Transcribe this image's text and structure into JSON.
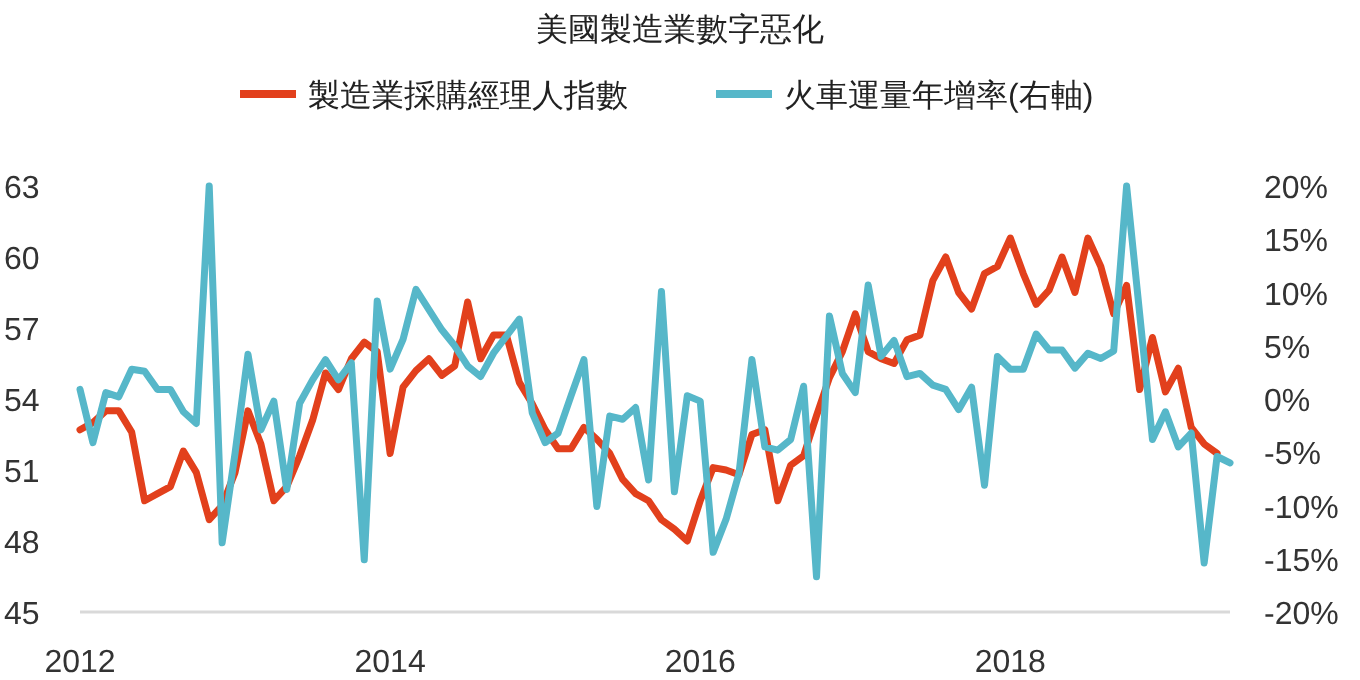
{
  "chart_data": {
    "type": "line",
    "title": "美國製造業數字惡化",
    "legend": "top",
    "grid": false,
    "x": [
      "2012-01",
      "2012-02",
      "2012-03",
      "2012-04",
      "2012-05",
      "2012-06",
      "2012-07",
      "2012-08",
      "2012-09",
      "2012-10",
      "2012-11",
      "2012-12",
      "2013-01",
      "2013-02",
      "2013-03",
      "2013-04",
      "2013-05",
      "2013-06",
      "2013-07",
      "2013-08",
      "2013-09",
      "2013-10",
      "2013-11",
      "2013-12",
      "2014-01",
      "2014-02",
      "2014-03",
      "2014-04",
      "2014-05",
      "2014-06",
      "2014-07",
      "2014-08",
      "2014-09",
      "2014-10",
      "2014-11",
      "2014-12",
      "2015-01",
      "2015-02",
      "2015-03",
      "2015-04",
      "2015-05",
      "2015-06",
      "2015-07",
      "2015-08",
      "2015-09",
      "2015-10",
      "2015-11",
      "2015-12",
      "2016-01",
      "2016-02",
      "2016-03",
      "2016-04",
      "2016-05",
      "2016-06",
      "2016-07",
      "2016-08",
      "2016-09",
      "2016-10",
      "2016-11",
      "2016-12",
      "2017-01",
      "2017-02",
      "2017-03",
      "2017-04",
      "2017-05",
      "2017-06",
      "2017-07",
      "2017-08",
      "2017-09",
      "2017-10",
      "2017-11",
      "2017-12",
      "2018-01",
      "2018-02",
      "2018-03",
      "2018-04",
      "2018-05",
      "2018-06",
      "2018-07",
      "2018-08",
      "2018-09",
      "2018-10",
      "2018-11",
      "2018-12",
      "2019-01",
      "2019-02",
      "2019-03",
      "2019-04",
      "2019-05",
      "2019-06"
    ],
    "xlim": [
      "2012-01",
      "2019-06"
    ],
    "xticks": [
      {
        "value": "2012-01",
        "label": "2012"
      },
      {
        "value": "2014-01",
        "label": "2014"
      },
      {
        "value": "2016-01",
        "label": "2016"
      },
      {
        "value": "2018-01",
        "label": "2018"
      }
    ],
    "ylim": [
      45,
      63
    ],
    "yticks": [
      45,
      48,
      51,
      54,
      57,
      60,
      63
    ],
    "y2lim": [
      -20,
      20
    ],
    "y2ticks": [
      {
        "value": -20,
        "label": "-20%"
      },
      {
        "value": -15,
        "label": "-15%"
      },
      {
        "value": -10,
        "label": "-10%"
      },
      {
        "value": -5,
        "label": "-5%"
      },
      {
        "value": 0,
        "label": "0%"
      },
      {
        "value": 5,
        "label": "5%"
      },
      {
        "value": 10,
        "label": "10%"
      },
      {
        "value": 15,
        "label": "15%"
      },
      {
        "value": 20,
        "label": "20%"
      }
    ],
    "series": [
      {
        "name": "製造業採購經理人指數",
        "color": "#e2401c",
        "values": [
          52.7,
          53.0,
          53.5,
          53.5,
          52.6,
          49.7,
          50.0,
          50.3,
          51.8,
          50.9,
          48.9,
          49.5,
          50.9,
          53.5,
          52.1,
          49.7,
          50.3,
          51.6,
          53.1,
          55.1,
          54.4,
          55.7,
          56.4,
          56.0,
          51.7,
          54.5,
          55.2,
          55.7,
          55.0,
          55.4,
          58.1,
          55.7,
          56.7,
          56.7,
          54.7,
          53.8,
          52.7,
          51.9,
          51.9,
          52.8,
          52.3,
          51.7,
          50.6,
          50.0,
          49.7,
          48.9,
          48.5,
          48.0,
          49.7,
          51.1,
          51.0,
          50.8,
          52.5,
          52.7,
          49.7,
          51.2,
          51.6,
          53.3,
          54.9,
          56.0,
          57.6,
          56.0,
          55.7,
          55.5,
          56.5,
          56.7,
          59.0,
          60.0,
          58.5,
          57.8,
          59.3,
          59.6,
          60.8,
          59.3,
          58.0,
          58.6,
          60.0,
          58.5,
          60.8,
          59.6,
          57.6,
          58.8,
          54.4,
          56.6,
          54.3,
          55.3,
          52.8,
          52.1,
          51.7,
          null
        ]
      },
      {
        "name": "火車運量年增率(右軸)",
        "color": "#56b7c9",
        "axis": "y2",
        "values": [
          0.9,
          -4.1,
          0.6,
          0.2,
          2.8,
          2.6,
          0.9,
          0.9,
          -1.2,
          -2.3,
          20,
          -13.5,
          -5.1,
          4.2,
          -2.9,
          -0.2,
          -8.5,
          -0.4,
          1.8,
          3.7,
          1.8,
          3.4,
          -15.1,
          9.2,
          2.8,
          5.6,
          10.3,
          8.4,
          6.5,
          5.0,
          3.1,
          2.1,
          4.3,
          5.9,
          7.5,
          -1.3,
          -4.1,
          -3.2,
          0.3,
          3.7,
          -10.1,
          -1.6,
          -1.9,
          -0.8,
          -7.6,
          10.1,
          -8.7,
          0.3,
          -0.2,
          -14.4,
          -11.3,
          -7.0,
          3.7,
          -4.5,
          -4.8,
          -3.8,
          1.2,
          -16.7,
          7.8,
          2.4,
          0.6,
          10.7,
          4.0,
          5.5,
          2.1,
          2.4,
          1.3,
          0.9,
          -1.0,
          1.1,
          -8.1,
          4.0,
          2.8,
          2.8,
          6.1,
          4.6,
          4.6,
          2.9,
          4.3,
          3.8,
          4.5,
          20,
          8.1,
          -3.8,
          -1.2,
          -4.5,
          -3.2,
          -15.4,
          -5.4,
          -6.0
        ]
      }
    ]
  }
}
